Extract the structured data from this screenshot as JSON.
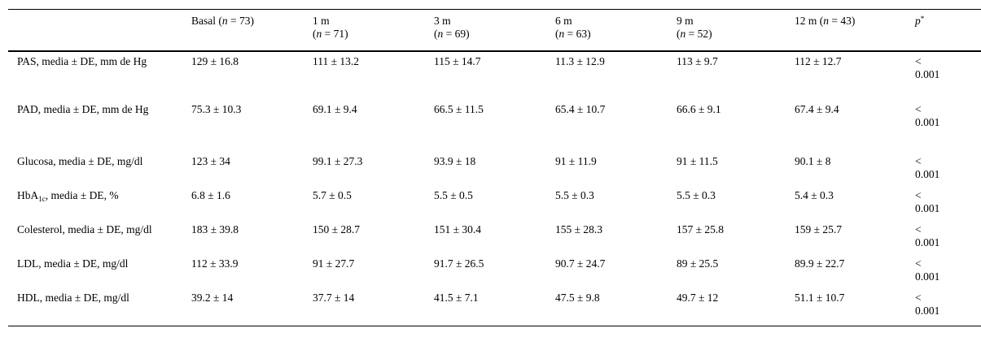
{
  "header": {
    "col1": "Basal (n = 73)",
    "col2": "1 m (n = 71)",
    "col3": "3 m (n = 69)",
    "col4": "6 m (n = 63)",
    "col5": "9 m (n = 52)",
    "col6": "12 m (n = 43)",
    "col7": "p*"
  },
  "header_parts": {
    "basal": "Basal (",
    "basal_n": "n",
    "basal_val": " = 73)",
    "m1_a": "1 m",
    "m1_n": "n",
    "m1_val": " = 71)",
    "m3_a": "3 m",
    "m3_n": "n",
    "m3_val": " = 69)",
    "m6_a": "6 m",
    "m6_n": "n",
    "m6_val": " = 63)",
    "m9_a": "9 m",
    "m9_n": "n",
    "m9_val": " = 52)",
    "m12_a": "12 m (",
    "m12_n": "n",
    "m12_val": " = 43)",
    "p": "p",
    "p_sup": "*"
  },
  "rows": [
    {
      "label": "PAS, media ± DE, mm de Hg",
      "values": [
        "129 ± 16.8",
        "111 ± 13.2",
        "115 ± 14.7",
        "11.3 ± 12.9",
        "113 ± 9.7",
        "112 ± 12.7",
        "< 0.001"
      ]
    },
    {
      "label": "PAD, media ± DE, mm de Hg",
      "values": [
        "75.3 ± 10.3",
        "69.1 ± 9.4",
        "66.5 ± 11.5",
        "65.4 ± 10.7",
        "66.6 ± 9.1",
        "67.4 ± 9.4",
        "< 0.001"
      ]
    },
    {
      "label": "Glucosa, media ± DE, mg/dl",
      "values": [
        "123 ± 34",
        "99.1 ± 27.3",
        "93.9 ± 18",
        "91 ± 11.9",
        "91 ± 11.5",
        "90.1 ± 8",
        "< 0.001"
      ]
    },
    {
      "label_pre": "HbA",
      "label_sub": "1c",
      "label_post": ", media ± DE, %",
      "values": [
        "6.8 ± 1.6",
        "5.7 ± 0.5",
        "5.5 ± 0.5",
        "5.5 ± 0.3",
        "5.5 ± 0.3",
        "5.4 ± 0.3",
        "< 0.001"
      ]
    },
    {
      "label": "Colesterol, media ± DE, mg/dl",
      "values": [
        "183 ± 39.8",
        "150 ± 28.7",
        "151 ± 30.4",
        "155 ± 28.3",
        "157 ± 25.8",
        "159 ± 25.7",
        "< 0.001"
      ]
    },
    {
      "label": "LDL, media ± DE, mg/dl",
      "values": [
        "112 ± 33.9",
        "91 ± 27.7",
        "91.7 ± 26.5",
        "90.7 ± 24.7",
        "89 ± 25.5",
        "89.9 ± 22.7",
        "< 0.001"
      ]
    },
    {
      "label": "HDL, media ± DE, mg/dl",
      "values": [
        "39.2 ± 14",
        "37.7 ± 14",
        "41.5 ± 7.1",
        "47.5 ± 9.8",
        "49.7 ± 12",
        "51.1 ± 10.7",
        "< 0.001"
      ]
    }
  ]
}
